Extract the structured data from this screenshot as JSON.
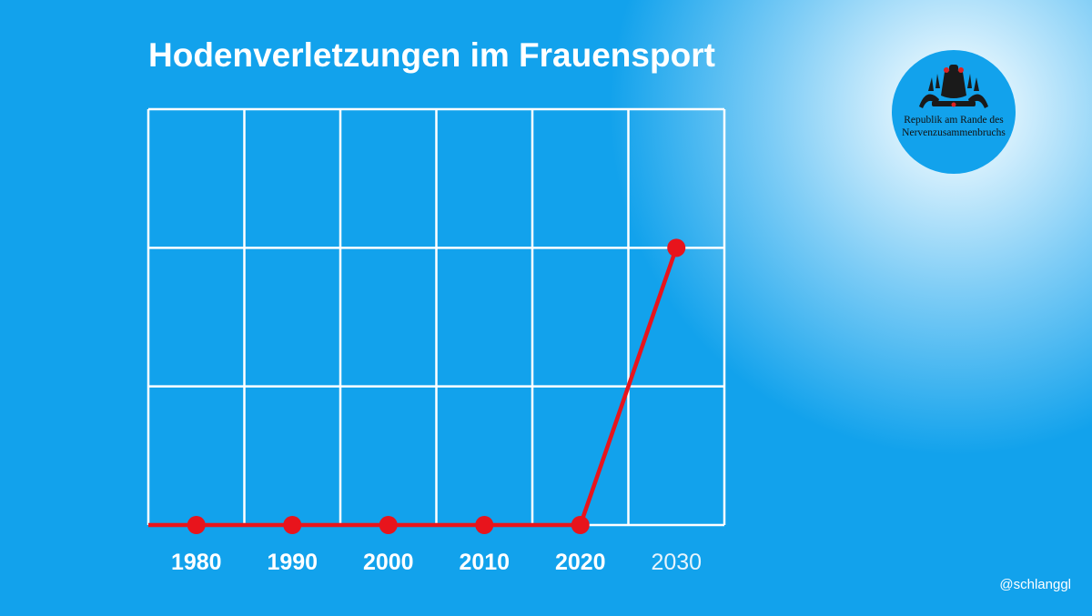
{
  "chart_data": {
    "type": "line",
    "title": "Hodenverletzungen im Frauensport",
    "xlabel": "",
    "ylabel": "",
    "x": [
      "1980",
      "1990",
      "2000",
      "2010",
      "2020",
      "2030"
    ],
    "series": [
      {
        "values": [
          0,
          0,
          0,
          0,
          0,
          2
        ]
      }
    ],
    "ylim": [
      0,
      3
    ],
    "grid": true,
    "line_color": "#e8141c",
    "grid_color": "#ffffff",
    "label_colors": {
      "bold": "#ffffff",
      "future": "#e6f4fc"
    }
  },
  "logo": {
    "icon": "fountain-figure-icon",
    "text_line1": "Republik am Rande des",
    "text_line2": "Nervenzusammenbruchs"
  },
  "handle": "@schlanggl",
  "colors": {
    "background": "#12a2ec",
    "line": "#e8141c"
  }
}
